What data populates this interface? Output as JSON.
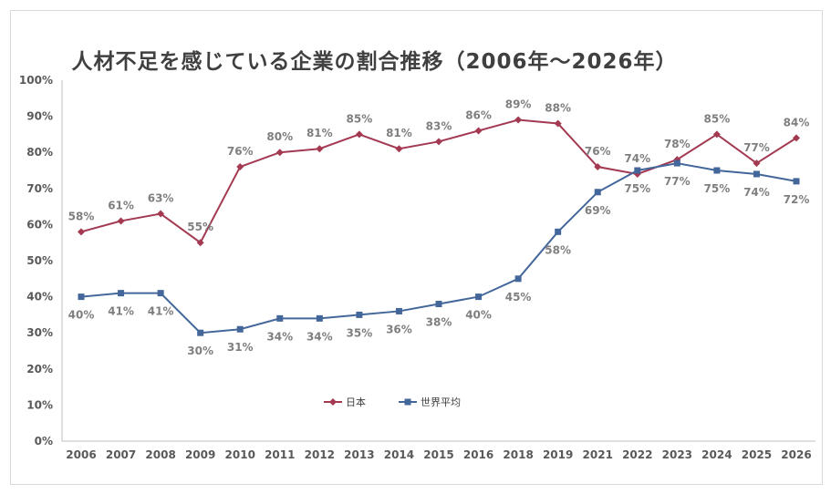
{
  "chart_data": {
    "type": "line",
    "title": "人材不足を感じている企業の割合推移（2006年～2026年）",
    "categories": [
      "2006",
      "2007",
      "2008",
      "2009",
      "2010",
      "2011",
      "2012",
      "2013",
      "2014",
      "2015",
      "2016",
      "2018",
      "2019",
      "2021",
      "2022",
      "2023",
      "2024",
      "2025",
      "2026"
    ],
    "y_ticks": [
      "0%",
      "10%",
      "20%",
      "30%",
      "40%",
      "50%",
      "60%",
      "70%",
      "80%",
      "90%",
      "100%"
    ],
    "ylim": [
      0,
      100
    ],
    "y_unit": "%",
    "grid": false,
    "legend_position": "bottom-inside",
    "series": [
      {
        "name": "日本",
        "color": "#A33A52",
        "marker": "diamond",
        "label_position": "above",
        "values": [
          58,
          61,
          63,
          55,
          76,
          80,
          81,
          85,
          81,
          83,
          86,
          89,
          88,
          76,
          74,
          78,
          85,
          77,
          84
        ]
      },
      {
        "name": "世界平均",
        "color": "#44679B",
        "marker": "square",
        "label_position": "below",
        "values": [
          40,
          41,
          41,
          30,
          31,
          34,
          34,
          35,
          36,
          38,
          40,
          45,
          58,
          69,
          75,
          77,
          75,
          74,
          72
        ]
      }
    ]
  }
}
